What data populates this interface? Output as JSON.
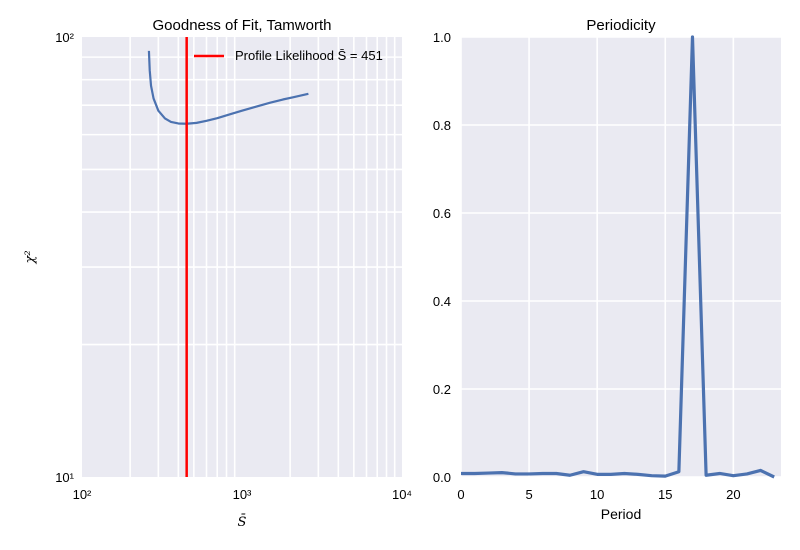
{
  "chart_data": [
    {
      "type": "line",
      "title": "Goodness of Fit, Tamworth",
      "xlabel": "S̄",
      "ylabel": "χ²",
      "xscale": "log",
      "yscale": "log",
      "xlim": [
        100,
        10000
      ],
      "ylim": [
        10,
        100
      ],
      "x_tick_labels": [
        "10²",
        "10³",
        "10⁴"
      ],
      "y_tick_labels": [
        "10¹",
        "10²"
      ],
      "grid": true,
      "legend_position": "top-right",
      "legend_label": "Profile Likelihood S̄ = 451",
      "vline": {
        "x": 451,
        "color": "#ff0000"
      },
      "series": [
        {
          "color": "#4c72b0",
          "x": [
            262,
            265,
            270,
            280,
            300,
            330,
            360,
            400,
            451,
            520,
            600,
            700,
            850,
            1000,
            1200,
            1500,
            1800,
            2100,
            2400,
            2600
          ],
          "y": [
            93,
            84,
            77.5,
            72.5,
            68,
            65.3,
            64.1,
            63.6,
            63.5,
            63.8,
            64.5,
            65.4,
            66.8,
            68.0,
            69.3,
            70.9,
            72.1,
            73.0,
            73.8,
            74.3
          ]
        }
      ]
    },
    {
      "type": "line",
      "title": "Periodicity",
      "xlabel": "Period",
      "ylabel": "",
      "xlim": [
        0,
        23.5
      ],
      "ylim": [
        0,
        1.0
      ],
      "x_tick_labels": [
        "0",
        "5",
        "10",
        "15",
        "20"
      ],
      "y_tick_labels": [
        "0.0",
        "0.2",
        "0.4",
        "0.6",
        "0.8",
        "1.0"
      ],
      "grid": true,
      "series": [
        {
          "color": "#4c72b0",
          "x": [
            0,
            1,
            2,
            3,
            4,
            5,
            6,
            7,
            8,
            9,
            10,
            11,
            12,
            13,
            14,
            15,
            16,
            17,
            18,
            19,
            20,
            21,
            22,
            23
          ],
          "y": [
            0.008,
            0.008,
            0.009,
            0.01,
            0.007,
            0.007,
            0.008,
            0.008,
            0.004,
            0.012,
            0.006,
            0.006,
            0.008,
            0.006,
            0.003,
            0.002,
            0.012,
            1.0,
            0.004,
            0.008,
            0.003,
            0.007,
            0.015,
            0.0
          ]
        }
      ]
    }
  ]
}
